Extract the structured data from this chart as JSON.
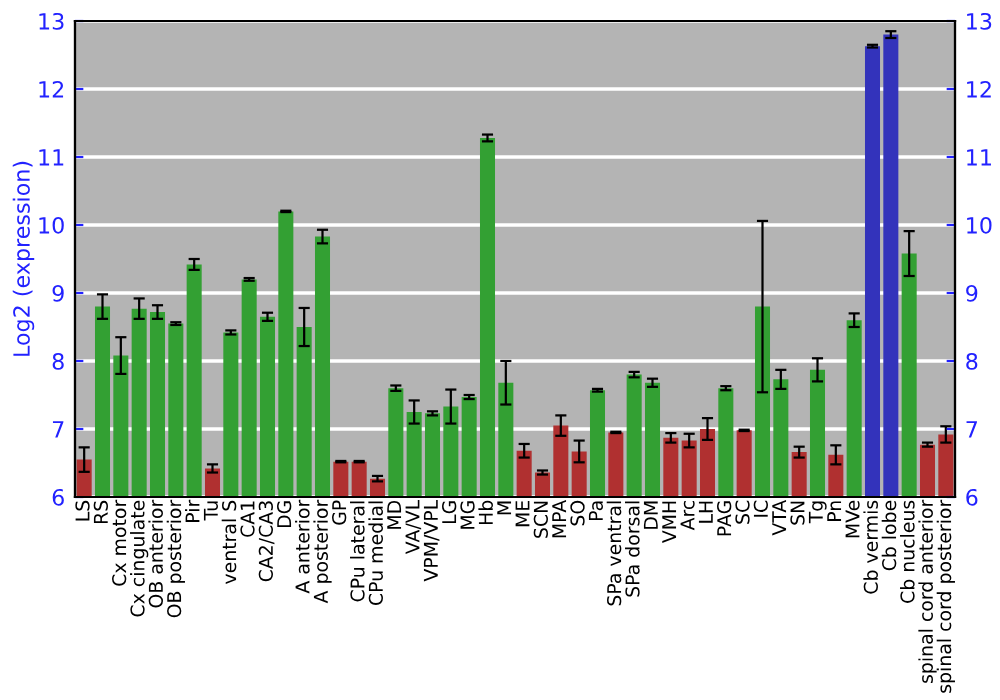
{
  "chart_data": {
    "type": "bar",
    "ylabel": "Log2 (expression)",
    "categories": [
      "LS",
      "RS",
      "Cx motor",
      "Cx cingulate",
      "OB anterior",
      "OB posterior",
      "Pir",
      "Tu",
      "ventral S",
      "CA1",
      "CA2/CA3",
      "DG",
      "A anterior",
      "A posterior",
      "GP",
      "CPu lateral",
      "CPu medial",
      "MD",
      "VA/VL",
      "VPM/VPL",
      "LG",
      "MG",
      "Hb",
      "M",
      "ME",
      "SCN",
      "MPA",
      "SO",
      "Pa",
      "SPa ventral",
      "SPa dorsal",
      "DM",
      "VMH",
      "Arc",
      "LH",
      "PAG",
      "SC",
      "IC",
      "VTA",
      "SN",
      "Tg",
      "Pn",
      "MVe",
      "Cb vermis",
      "Cb lobe",
      "Cb nucleus",
      "spinal cord anterior",
      "spinal cord posterior"
    ],
    "values": [
      6.55,
      8.8,
      8.08,
      8.77,
      8.72,
      8.55,
      9.42,
      6.42,
      8.42,
      9.2,
      8.65,
      10.2,
      8.5,
      9.83,
      6.52,
      6.52,
      6.27,
      7.6,
      7.25,
      7.23,
      7.33,
      7.47,
      11.28,
      7.68,
      6.68,
      6.36,
      7.05,
      6.67,
      7.57,
      6.95,
      7.8,
      7.68,
      6.87,
      6.83,
      7.0,
      7.6,
      6.98,
      8.8,
      7.73,
      6.66,
      7.87,
      6.62,
      8.6,
      12.63,
      12.8,
      9.58,
      6.77,
      6.92
    ],
    "errors": [
      0.18,
      0.18,
      0.27,
      0.15,
      0.1,
      0.02,
      0.08,
      0.06,
      0.03,
      0.02,
      0.06,
      0.01,
      0.28,
      0.1,
      0.01,
      0.01,
      0.04,
      0.04,
      0.17,
      0.03,
      0.25,
      0.03,
      0.05,
      0.32,
      0.1,
      0.03,
      0.15,
      0.16,
      0.02,
      0.01,
      0.04,
      0.06,
      0.07,
      0.1,
      0.16,
      0.03,
      0.01,
      1.26,
      0.14,
      0.08,
      0.17,
      0.14,
      0.1,
      0.02,
      0.05,
      0.33,
      0.03,
      0.12
    ],
    "colors": [
      "#b03030",
      "#33a033",
      "#33a033",
      "#33a033",
      "#33a033",
      "#33a033",
      "#33a033",
      "#b03030",
      "#33a033",
      "#33a033",
      "#33a033",
      "#33a033",
      "#33a033",
      "#33a033",
      "#b03030",
      "#b03030",
      "#b03030",
      "#33a033",
      "#33a033",
      "#33a033",
      "#33a033",
      "#33a033",
      "#33a033",
      "#33a033",
      "#b03030",
      "#b03030",
      "#b03030",
      "#b03030",
      "#33a033",
      "#b03030",
      "#33a033",
      "#33a033",
      "#b03030",
      "#b03030",
      "#b03030",
      "#33a033",
      "#b03030",
      "#33a033",
      "#33a033",
      "#b03030",
      "#33a033",
      "#b03030",
      "#33a033",
      "#3333bb",
      "#3333bb",
      "#33a033",
      "#b03030",
      "#b03030"
    ],
    "ylim": [
      6,
      13
    ],
    "yticks": [
      6,
      7,
      8,
      9,
      10,
      11,
      12,
      13
    ],
    "y2lim": [
      6,
      13
    ],
    "y2ticks": [
      6,
      7,
      8,
      9,
      10,
      11,
      12,
      13
    ],
    "grid": "y"
  }
}
